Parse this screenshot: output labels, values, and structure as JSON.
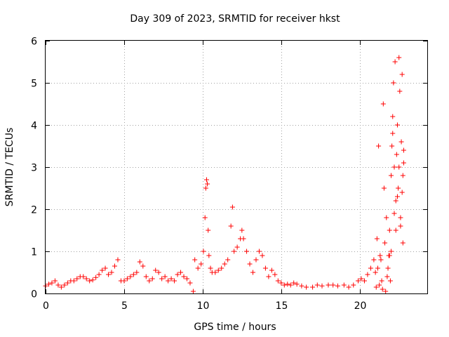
{
  "chart_data": {
    "type": "scatter",
    "title": "Day 309 of 2023, SRMTID for receiver hkst",
    "xlabel": "GPS time / hours",
    "ylabel": "SRMTID / TECUs",
    "xlim": [
      0,
      24.3
    ],
    "ylim": [
      0,
      6
    ],
    "x_ticks": [
      0,
      5,
      10,
      15,
      20
    ],
    "x_tick_labels": [
      "0",
      "5",
      "10",
      "15",
      "20"
    ],
    "y_ticks": [
      0,
      1,
      2,
      3,
      4,
      5,
      6
    ],
    "y_tick_labels": [
      "0",
      "1",
      "2",
      "3",
      "4",
      "5",
      "6"
    ],
    "grid": true,
    "marker": "+",
    "series": [
      {
        "name": "SRMTID",
        "color": "#ff0000",
        "x": [
          0.0,
          0.2,
          0.4,
          0.6,
          0.8,
          1.0,
          1.2,
          1.4,
          1.6,
          1.8,
          2.0,
          2.2,
          2.4,
          2.6,
          2.8,
          3.0,
          3.2,
          3.4,
          3.6,
          3.8,
          4.0,
          4.2,
          4.4,
          4.6,
          4.8,
          5.0,
          5.2,
          5.4,
          5.6,
          5.8,
          6.0,
          6.2,
          6.4,
          6.6,
          6.8,
          7.0,
          7.2,
          7.4,
          7.6,
          7.8,
          8.0,
          8.2,
          8.4,
          8.6,
          8.8,
          9.0,
          9.2,
          9.5,
          9.7,
          9.9,
          10.05,
          10.15,
          10.2,
          10.25,
          10.3,
          10.35,
          10.4,
          10.5,
          10.6,
          10.8,
          11.0,
          11.2,
          11.4,
          11.6,
          11.8,
          11.9,
          12.0,
          12.2,
          12.4,
          12.5,
          12.6,
          12.8,
          13.0,
          13.2,
          13.4,
          13.6,
          13.8,
          14.0,
          14.2,
          14.4,
          14.6,
          14.8,
          15.0,
          15.2,
          15.4,
          15.6,
          15.8,
          16.0,
          16.3,
          16.6,
          17.0,
          17.3,
          17.6,
          18.0,
          18.3,
          18.6,
          19.0,
          19.3,
          19.6,
          19.9,
          20.1,
          20.3,
          20.5,
          20.7,
          20.9,
          21.0,
          21.1,
          21.2,
          21.3,
          21.4,
          21.5,
          21.6,
          21.7,
          21.8,
          21.9,
          22.0,
          22.05,
          22.1,
          22.15,
          22.2,
          22.25,
          22.3,
          22.35,
          22.4,
          22.45,
          22.5,
          22.55,
          22.6,
          22.65,
          22.7,
          22.75,
          22.8,
          21.05,
          21.25,
          21.45,
          21.65,
          21.85,
          22.0,
          22.2,
          22.4,
          22.6,
          22.75,
          21.15,
          21.35,
          21.55,
          21.75,
          21.95,
          22.1,
          22.3,
          22.5,
          22.7,
          22.8,
          9.4,
          21.9
        ],
        "y": [
          0.18,
          0.22,
          0.25,
          0.3,
          0.2,
          0.15,
          0.2,
          0.25,
          0.3,
          0.3,
          0.35,
          0.4,
          0.4,
          0.35,
          0.3,
          0.32,
          0.38,
          0.45,
          0.55,
          0.6,
          0.45,
          0.5,
          0.65,
          0.8,
          0.3,
          0.3,
          0.35,
          0.4,
          0.45,
          0.5,
          0.75,
          0.65,
          0.4,
          0.3,
          0.35,
          0.55,
          0.5,
          0.35,
          0.4,
          0.3,
          0.35,
          0.3,
          0.45,
          0.5,
          0.4,
          0.35,
          0.25,
          0.8,
          0.6,
          0.7,
          1.0,
          1.8,
          2.5,
          2.7,
          2.6,
          1.5,
          0.9,
          0.6,
          0.5,
          0.5,
          0.55,
          0.6,
          0.7,
          0.8,
          1.6,
          2.05,
          1.0,
          1.1,
          1.3,
          1.5,
          1.3,
          1.0,
          0.7,
          0.5,
          0.8,
          1.0,
          0.9,
          0.6,
          0.4,
          0.55,
          0.45,
          0.3,
          0.25,
          0.2,
          0.22,
          0.2,
          0.25,
          0.22,
          0.18,
          0.15,
          0.15,
          0.2,
          0.18,
          0.2,
          0.2,
          0.18,
          0.2,
          0.15,
          0.2,
          0.3,
          0.35,
          0.3,
          0.45,
          0.6,
          0.8,
          0.5,
          1.3,
          3.5,
          0.9,
          0.3,
          4.5,
          1.2,
          1.8,
          0.6,
          1.5,
          2.8,
          3.5,
          4.2,
          5.0,
          3.0,
          5.5,
          2.2,
          3.3,
          4.0,
          2.5,
          5.6,
          4.8,
          1.6,
          3.6,
          5.2,
          2.8,
          3.1,
          0.15,
          0.2,
          0.1,
          0.05,
          0.9,
          1.0,
          1.9,
          2.3,
          1.8,
          1.2,
          0.6,
          0.8,
          2.5,
          0.4,
          0.3,
          3.8,
          1.5,
          3.0,
          2.4,
          3.4,
          0.05,
          0.9
        ]
      }
    ]
  }
}
